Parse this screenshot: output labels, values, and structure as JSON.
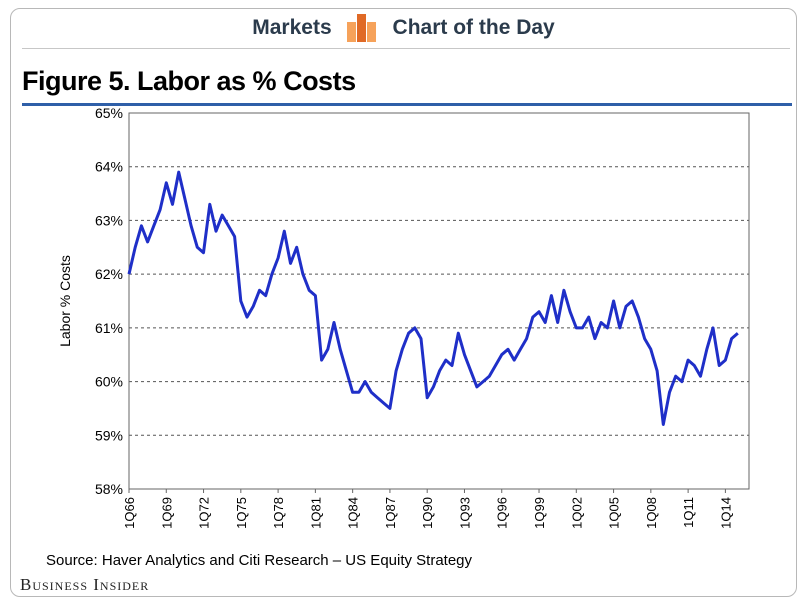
{
  "header": {
    "left_label": "Markets",
    "right_label": "Chart of the Day",
    "logo_icon": "bar-chart-logo-icon",
    "logo_colors": [
      "#f6a25a",
      "#e06a26",
      "#f6a25a"
    ]
  },
  "title": "Figure 5. Labor as % Costs",
  "source": "Source: Haver Analytics and Citi Research – US Equity Strategy",
  "brand": "Business Insider",
  "chart_data": {
    "type": "line",
    "ylabel": "Labor % Costs",
    "xlabel": "",
    "ylim": [
      58,
      65
    ],
    "yticks": [
      "58%",
      "59%",
      "60%",
      "61%",
      "62%",
      "63%",
      "64%",
      "65%"
    ],
    "xticks": [
      "1Q66",
      "1Q69",
      "1Q72",
      "1Q75",
      "1Q78",
      "1Q81",
      "1Q84",
      "1Q87",
      "1Q90",
      "1Q93",
      "1Q96",
      "1Q99",
      "1Q02",
      "1Q05",
      "1Q08",
      "1Q11",
      "1Q14"
    ],
    "grid": true,
    "line_color": "#1f2fc8",
    "series": [
      {
        "x": [
          1966.0,
          1966.5,
          1967.0,
          1967.5,
          1968.0,
          1968.5,
          1969.0,
          1969.5,
          1970.0,
          1970.5,
          1971.0,
          1971.5,
          1972.0,
          1972.5,
          1973.0,
          1973.5,
          1974.0,
          1974.5,
          1975.0,
          1975.5,
          1976.0,
          1976.5,
          1977.0,
          1977.5,
          1978.0,
          1978.5,
          1979.0,
          1979.5,
          1980.0,
          1980.5,
          1981.0,
          1981.5,
          1982.0,
          1982.5,
          1983.0,
          1983.5,
          1984.0,
          1984.5,
          1985.0,
          1985.5,
          1986.0,
          1986.5,
          1987.0,
          1987.5,
          1988.0,
          1988.5,
          1989.0,
          1989.5,
          1990.0,
          1990.5,
          1991.0,
          1991.5,
          1992.0,
          1992.5,
          1993.0,
          1993.5,
          1994.0,
          1994.5,
          1995.0,
          1995.5,
          1996.0,
          1996.5,
          1997.0,
          1997.5,
          1998.0,
          1998.5,
          1999.0,
          1999.5,
          2000.0,
          2000.5,
          2001.0,
          2001.5,
          2002.0,
          2002.5,
          2003.0,
          2003.5,
          2004.0,
          2004.5,
          2005.0,
          2005.5,
          2006.0,
          2006.5,
          2007.0,
          2007.5,
          2008.0,
          2008.5,
          2009.0,
          2009.5,
          2010.0,
          2010.5,
          2011.0,
          2011.5,
          2012.0,
          2012.5,
          2013.0,
          2013.5,
          2014.0,
          2014.5,
          2015.0
        ],
        "values": [
          62.0,
          62.5,
          62.9,
          62.6,
          62.9,
          63.2,
          63.7,
          63.3,
          63.9,
          63.4,
          62.9,
          62.5,
          62.4,
          63.3,
          62.8,
          63.1,
          62.9,
          62.7,
          61.5,
          61.2,
          61.4,
          61.7,
          61.6,
          62.0,
          62.3,
          62.8,
          62.2,
          62.5,
          62.0,
          61.7,
          61.6,
          60.4,
          60.6,
          61.1,
          60.6,
          60.2,
          59.8,
          59.8,
          60.0,
          59.8,
          59.7,
          59.6,
          59.5,
          60.2,
          60.6,
          60.9,
          61.0,
          60.8,
          59.7,
          59.9,
          60.2,
          60.4,
          60.3,
          60.9,
          60.5,
          60.2,
          59.9,
          60.0,
          60.1,
          60.3,
          60.5,
          60.6,
          60.4,
          60.6,
          60.8,
          61.2,
          61.3,
          61.1,
          61.6,
          61.1,
          61.7,
          61.3,
          61.0,
          61.0,
          61.2,
          60.8,
          61.1,
          61.0,
          61.5,
          61.0,
          61.4,
          61.5,
          61.2,
          60.8,
          60.6,
          60.2,
          59.2,
          59.8,
          60.1,
          60.0,
          60.4,
          60.3,
          60.1,
          60.6,
          61.0,
          60.3,
          60.4,
          60.8,
          60.9
        ]
      }
    ]
  }
}
